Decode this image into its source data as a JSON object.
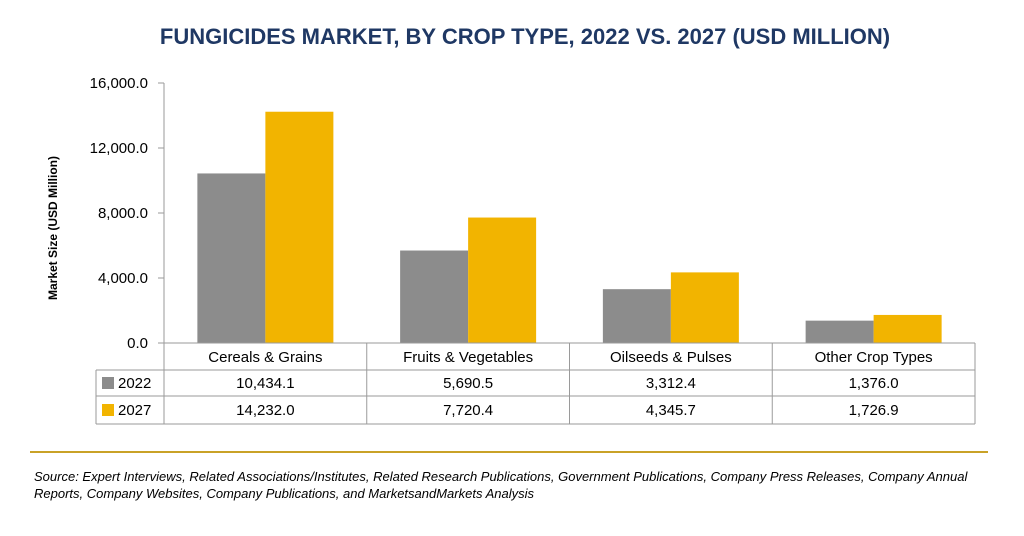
{
  "chart_data": {
    "type": "bar",
    "title": "FUNGICIDES MARKET, BY CROP TYPE, 2022 VS. 2027 (USD MILLION)",
    "ylabel": "Market Size (USD Million)",
    "xlabel": "",
    "ylim": [
      0,
      16000
    ],
    "yticks": [
      "0.0",
      "4,000.0",
      "8,000.0",
      "12,000.0",
      "16,000.0"
    ],
    "ytick_values": [
      0,
      4000,
      8000,
      12000,
      16000
    ],
    "categories": [
      "Cereals & Grains",
      "Fruits & Vegetables",
      "Oilseeds & Pulses",
      "Other Crop Types"
    ],
    "series": [
      {
        "name": "2022",
        "color": "#8c8c8c",
        "values": [
          10434.1,
          5690.5,
          3312.4,
          1376.0
        ],
        "labels": [
          "10,434.1",
          "5,690.5",
          "3,312.4",
          "1,376.0"
        ]
      },
      {
        "name": "2027",
        "color": "#f2b400",
        "values": [
          14232.0,
          7720.4,
          4345.7,
          1726.9
        ],
        "labels": [
          "14,232.0",
          "7,720.4",
          "4,345.7",
          "1,726.9"
        ]
      }
    ],
    "grid": false,
    "legend": "data-table"
  },
  "source_note": "Source: Expert Interviews, Related Associations/Institutes, Related Research Publications, Government Publications, Company Press Releases, Company Annual Reports, Company Websites, Company Publications, and MarketsandMarkets Analysis",
  "colors": {
    "title": "#1f3864",
    "divider": "#c9a227",
    "grey_bar": "#8c8c8c",
    "gold_bar": "#f2b400"
  }
}
